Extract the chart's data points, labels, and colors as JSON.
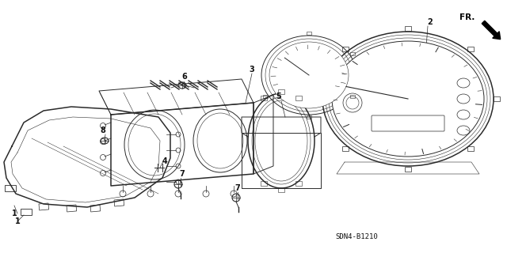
{
  "bg_color": "#ffffff",
  "line_color": "#2a2a2a",
  "label_color": "#111111",
  "fig_width": 6.4,
  "fig_height": 3.2,
  "dpi": 100,
  "diagram_code": "SDN4-B1210",
  "fr_label": "FR."
}
